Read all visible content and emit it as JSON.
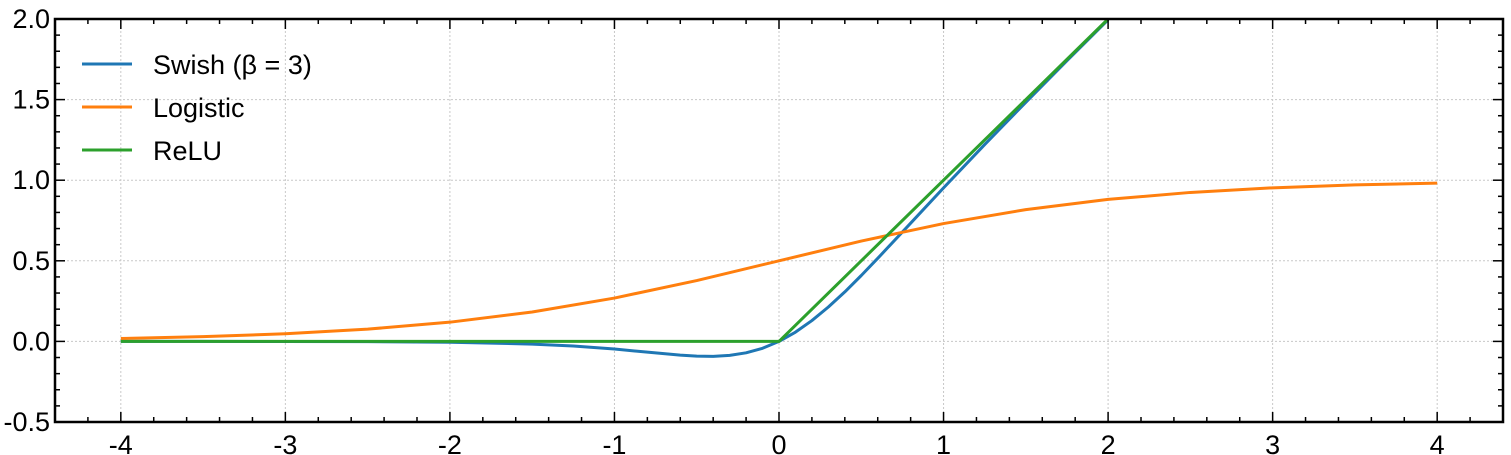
{
  "chart_data": {
    "type": "line",
    "title": "",
    "xlabel": "",
    "ylabel": "",
    "xlim": [
      -4.4,
      4.4
    ],
    "ylim": [
      -0.5,
      2.0
    ],
    "x_ticks": [
      -4,
      -3,
      -2,
      -1,
      0,
      1,
      2,
      3,
      4
    ],
    "x_tick_labels": [
      "-4",
      "-3",
      "-2",
      "-1",
      "0",
      "1",
      "2",
      "3",
      "4"
    ],
    "y_ticks": [
      -0.5,
      0.0,
      0.5,
      1.0,
      1.5,
      2.0
    ],
    "y_tick_labels": [
      "-0.5",
      "0.0",
      "0.5",
      "1.0",
      "1.5",
      "2.0"
    ],
    "grid": true,
    "legend_position": "top-left",
    "series": [
      {
        "name": "Swish (β = 3)",
        "color": "#1f77b4",
        "x": [
          -4.0,
          -3.5,
          -3.0,
          -2.5,
          -2.0,
          -1.5,
          -1.25,
          -1.0,
          -0.8,
          -0.6,
          -0.5,
          -0.4,
          -0.3,
          -0.2,
          -0.1,
          0.0,
          0.1,
          0.2,
          0.3,
          0.4,
          0.5,
          0.6,
          0.8,
          1.0,
          1.25,
          1.5,
          1.75,
          2.0
        ],
        "y": [
          -0.0,
          -0.0001,
          -0.0004,
          -0.0014,
          -0.005,
          -0.0166,
          -0.0288,
          -0.0474,
          -0.0666,
          -0.0848,
          -0.0912,
          -0.0928,
          -0.0867,
          -0.0708,
          -0.0426,
          0.0,
          0.0574,
          0.1292,
          0.2133,
          0.3072,
          0.4088,
          0.5152,
          0.7334,
          0.9526,
          1.2212,
          1.4834,
          1.7412,
          1.995
        ]
      },
      {
        "name": "Logistic",
        "color": "#ff7f0e",
        "x": [
          -4.0,
          -3.5,
          -3.0,
          -2.5,
          -2.0,
          -1.5,
          -1.0,
          -0.5,
          0.0,
          0.5,
          1.0,
          1.5,
          2.0,
          2.5,
          3.0,
          3.5,
          4.0
        ],
        "y": [
          0.018,
          0.0293,
          0.0474,
          0.0759,
          0.1192,
          0.1824,
          0.2689,
          0.3775,
          0.5,
          0.6225,
          0.7311,
          0.8176,
          0.8808,
          0.9241,
          0.9526,
          0.9707,
          0.982
        ]
      },
      {
        "name": "ReLU",
        "color": "#2ca02c",
        "x": [
          -4.0,
          0.0,
          2.0
        ],
        "y": [
          0.0,
          0.0,
          2.0
        ]
      }
    ]
  }
}
